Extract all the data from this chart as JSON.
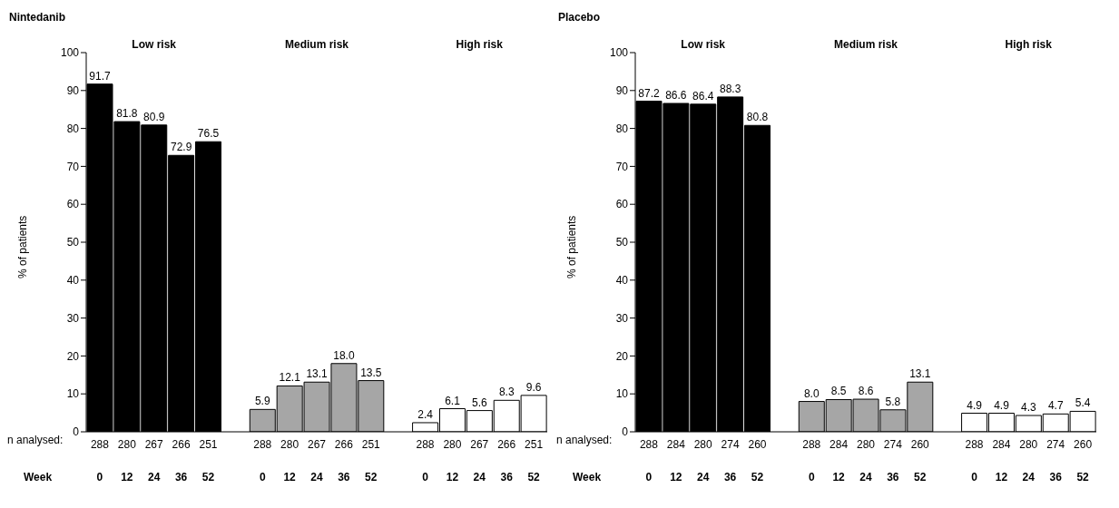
{
  "chart_data": [
    {
      "type": "bar",
      "title": "Nintedanib",
      "ylabel": "% of patients",
      "xlabel": "Week",
      "categories": [
        "0",
        "12",
        "24",
        "36",
        "52",
        null,
        "0",
        "12",
        "24",
        "36",
        "52",
        null,
        "0",
        "12",
        "24",
        "36",
        "52"
      ],
      "values": [
        91.7,
        81.8,
        80.9,
        72.9,
        76.5,
        null,
        5.9,
        12.1,
        13.1,
        18.0,
        13.5,
        null,
        2.4,
        6.1,
        5.6,
        8.3,
        9.6
      ],
      "colors": [
        "#000000",
        "#000000",
        "#000000",
        "#000000",
        "#000000",
        "#ffffff",
        "#a6a6a6",
        "#a6a6a6",
        "#a6a6a6",
        "#a6a6a6",
        "#a6a6a6",
        "#ffffff",
        "#ffffff",
        "#ffffff",
        "#ffffff",
        "#ffffff",
        "#ffffff"
      ],
      "value_labels": [
        "91.7",
        "81.8",
        "80.9",
        "72.9",
        "76.5",
        null,
        "5.9",
        "12.1",
        "13.1",
        "18.0",
        "13.5",
        null,
        "2.4",
        "6.1",
        "5.6",
        "8.3",
        "9.6"
      ],
      "annotations": [
        "Low risk",
        "Medium risk",
        "High risk",
        "n analysed:",
        "288",
        "280",
        "267",
        "266",
        "251",
        "288",
        "280",
        "267",
        "266",
        "251",
        "288",
        "280",
        "267",
        "266",
        "251"
      ],
      "ylim": [
        0,
        100
      ],
      "yticks": [
        0,
        10,
        20,
        30,
        40,
        50,
        60,
        70,
        80,
        90,
        100
      ],
      "grid": false,
      "legend": false
    },
    {
      "type": "bar",
      "title": "Placebo",
      "ylabel": "% of patients",
      "xlabel": "Week",
      "categories": [
        "0",
        "12",
        "24",
        "36",
        "52",
        null,
        "0",
        "12",
        "24",
        "36",
        "52",
        null,
        "0",
        "12",
        "24",
        "36",
        "52"
      ],
      "values": [
        87.2,
        86.6,
        86.4,
        88.3,
        80.8,
        null,
        8.0,
        8.5,
        8.6,
        5.8,
        13.1,
        null,
        4.9,
        4.9,
        4.3,
        4.7,
        5.4
      ],
      "colors": [
        "#000000",
        "#000000",
        "#000000",
        "#000000",
        "#000000",
        "#ffffff",
        "#a6a6a6",
        "#a6a6a6",
        "#a6a6a6",
        "#a6a6a6",
        "#a6a6a6",
        "#ffffff",
        "#ffffff",
        "#ffffff",
        "#ffffff",
        "#ffffff",
        "#ffffff"
      ],
      "value_labels": [
        "87.2",
        "86.6",
        "86.4",
        "88.3",
        "80.8",
        null,
        "8.0",
        "8.5",
        "8.6",
        "5.8",
        "13.1",
        null,
        "4.9",
        "4.9",
        "4.3",
        "4.7",
        "5.4"
      ],
      "annotations": [
        "Low risk",
        "Medium risk",
        "High risk",
        "n analysed:",
        "288",
        "284",
        "280",
        "274",
        "260",
        "288",
        "284",
        "280",
        "274",
        "260",
        "288",
        "284",
        "280",
        "274",
        "260"
      ],
      "ylim": [
        0,
        100
      ],
      "yticks": [
        0,
        10,
        20,
        30,
        40,
        50,
        60,
        70,
        80,
        90,
        100
      ],
      "grid": false,
      "legend": false
    }
  ]
}
